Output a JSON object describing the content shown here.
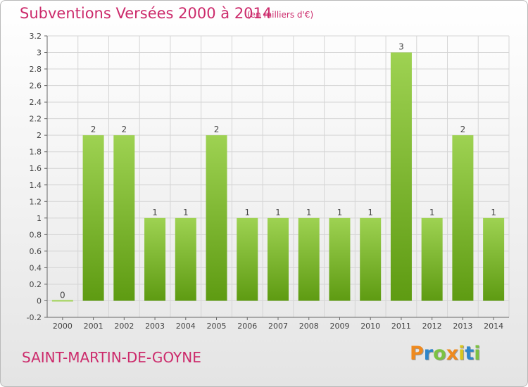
{
  "title": "Subventions Versées 2000 à 2014",
  "subtitle": "(en milliers d'€)",
  "commune": "SAINT-MARTIN-DE-GOYNE",
  "logo_letters": [
    "P",
    "r",
    "o",
    "x",
    "i",
    "t",
    "i"
  ],
  "logo_colors": [
    "#ef8a1e",
    "#2e86c9",
    "#7cc242",
    "#ef8a1e",
    "#d8c51f",
    "#2e86c9",
    "#7cc242"
  ],
  "colors": {
    "title": "#cc2a6b",
    "bar_light": "#9ed252",
    "bar_dark": "#5e9b12",
    "grid": "#d5d5d5"
  },
  "chart_data": {
    "type": "bar",
    "categories": [
      "2000",
      "2001",
      "2002",
      "2003",
      "2004",
      "2005",
      "2006",
      "2007",
      "2008",
      "2009",
      "2010",
      "2011",
      "2012",
      "2013",
      "2014"
    ],
    "values": [
      0,
      2,
      2,
      1,
      1,
      2,
      1,
      1,
      1,
      1,
      1,
      3,
      1,
      2,
      1
    ],
    "data_labels": [
      "0",
      "2",
      "2",
      "1",
      "1",
      "2",
      "1",
      "1",
      "1",
      "1",
      "1",
      "3",
      "1",
      "2",
      "1"
    ],
    "ylim": [
      -0.2,
      3.2
    ],
    "yticks": [
      -0.2,
      0,
      0.2,
      0.4,
      0.6,
      0.8,
      1,
      1.2,
      1.4,
      1.6,
      1.8,
      2,
      2.2,
      2.4,
      2.6,
      2.8,
      3,
      3.2
    ],
    "ytick_labels": [
      "-0.2",
      "0",
      "0.2",
      "0.4",
      "0.6",
      "0.8",
      "1",
      "1.2",
      "1.4",
      "1.6",
      "1.8",
      "2",
      "2.2",
      "2.4",
      "2.6",
      "2.8",
      "3",
      "3.2"
    ],
    "grid": true,
    "legend": "none"
  }
}
